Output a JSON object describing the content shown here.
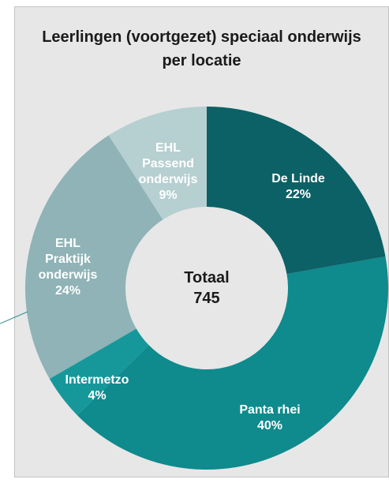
{
  "chart_data": {
    "type": "donut",
    "title": "Leerlingen (voortgezet) speciaal onderwijs per locatie",
    "categories": [
      "De Linde",
      "Panta rhei",
      "Intermetzo",
      "EHL Praktijk onderwijs",
      "EHL Passend onderwijs"
    ],
    "values": [
      22,
      40,
      4,
      24,
      9
    ],
    "value_labels": [
      "22%",
      "40%",
      "4%",
      "24%",
      "9%"
    ],
    "colors": [
      "#0b6165",
      "#0f8a8d",
      "#16989b",
      "#8fb3b6",
      "#b6cfd1"
    ],
    "center_label": "Totaal",
    "total": 745
  }
}
